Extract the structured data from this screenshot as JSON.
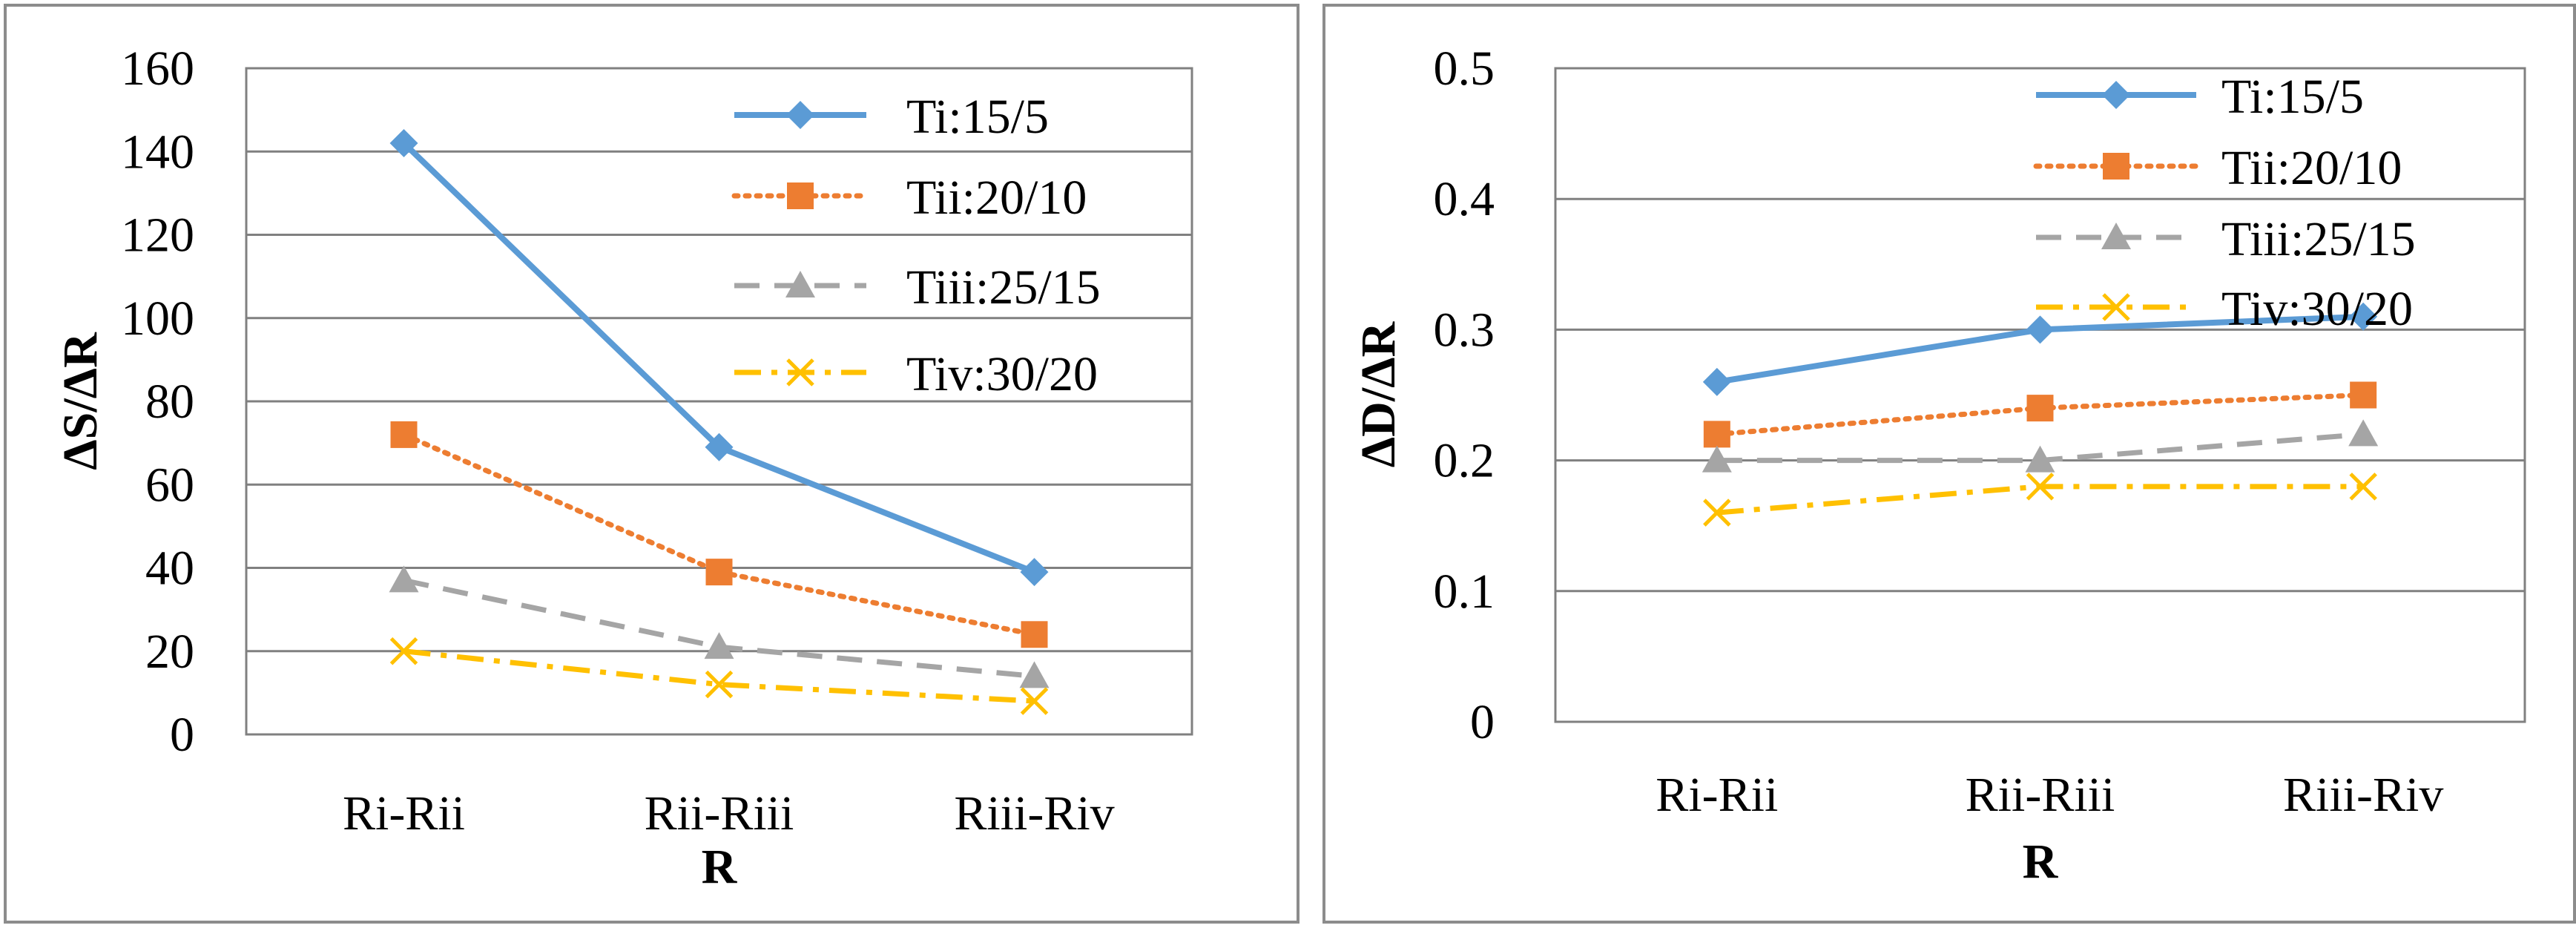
{
  "chart_data": [
    {
      "type": "line",
      "title": "",
      "categories": [
        "Ri-Rii",
        "Rii-Riii",
        "Riii-Riv"
      ],
      "xlabel": "R",
      "ylabel": "ΔS/ΔR",
      "ylim": [
        0,
        160
      ],
      "yticks": [
        0,
        20,
        40,
        60,
        80,
        100,
        120,
        140,
        160
      ],
      "ytick_labels": [
        "0",
        "20",
        "40",
        "60",
        "80",
        "100",
        "120",
        "140",
        "160"
      ],
      "grid": true,
      "legend_position": "top-right",
      "series": [
        {
          "name": "Ti:15/5",
          "values": [
            142,
            69,
            39
          ],
          "color": "#5b9bd5",
          "dash": "solid",
          "marker": "diamond"
        },
        {
          "name": "Tii:20/10",
          "values": [
            72,
            39,
            24
          ],
          "color": "#ed7d31",
          "dash": "dotted",
          "marker": "square"
        },
        {
          "name": "Tiii:25/15",
          "values": [
            37,
            21,
            14
          ],
          "color": "#a5a5a5",
          "dash": "dashed",
          "marker": "triangle"
        },
        {
          "name": "Tiv:30/20",
          "values": [
            20,
            12,
            8
          ],
          "color": "#ffc000",
          "dash": "dashdot",
          "marker": "x"
        }
      ]
    },
    {
      "type": "line",
      "title": "",
      "categories": [
        "Ri-Rii",
        "Rii-Riii",
        "Riii-Riv"
      ],
      "xlabel": "R",
      "ylabel": "ΔD/ΔR",
      "ylim": [
        0,
        0.5
      ],
      "yticks": [
        0,
        0.1,
        0.2,
        0.3,
        0.4,
        0.5
      ],
      "ytick_labels": [
        "0",
        "0.1",
        "0.2",
        "0.3",
        "0.4",
        "0.5"
      ],
      "grid": true,
      "legend_position": "top-right",
      "series": [
        {
          "name": "Ti:15/5",
          "values": [
            0.26,
            0.3,
            0.31
          ],
          "color": "#5b9bd5",
          "dash": "solid",
          "marker": "diamond"
        },
        {
          "name": "Tii:20/10",
          "values": [
            0.22,
            0.24,
            0.25
          ],
          "color": "#ed7d31",
          "dash": "dotted",
          "marker": "square"
        },
        {
          "name": "Tiii:25/15",
          "values": [
            0.2,
            0.2,
            0.22
          ],
          "color": "#a5a5a5",
          "dash": "dashed",
          "marker": "triangle"
        },
        {
          "name": "Tiv:30/20",
          "values": [
            0.16,
            0.18,
            0.18
          ],
          "color": "#ffc000",
          "dash": "dashdot",
          "marker": "x"
        }
      ]
    }
  ]
}
